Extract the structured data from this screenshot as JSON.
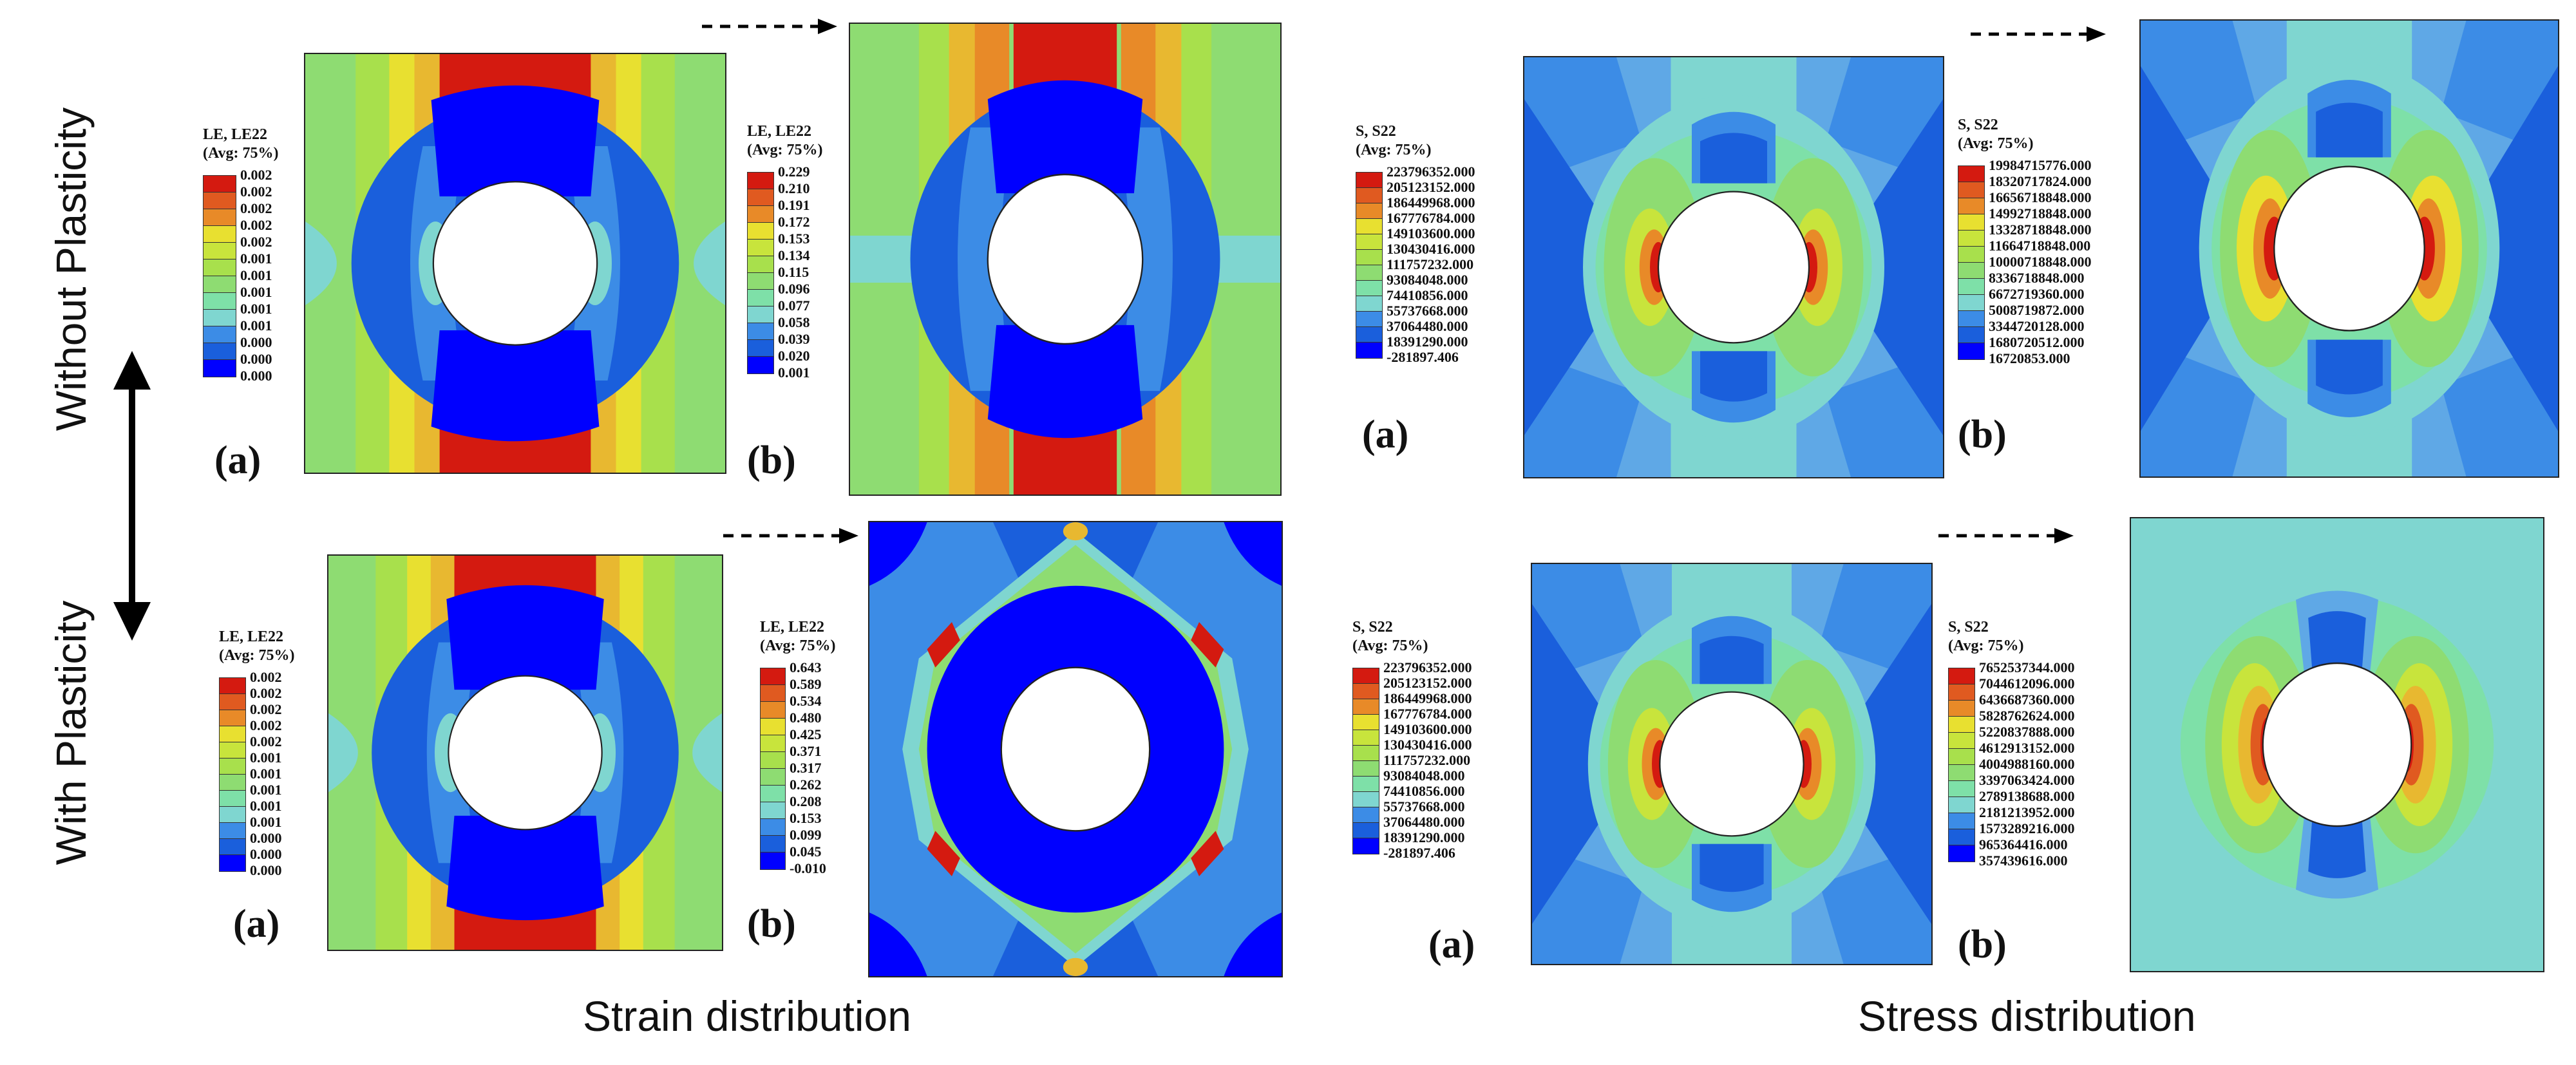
{
  "row_labels": {
    "top": "Without Plasticity",
    "bottom": "With Plasticity"
  },
  "section_labels": {
    "strain": "Strain distribution",
    "stress": "Stress distribution"
  },
  "panel_letters": {
    "a": "(a)",
    "b": "(b)"
  },
  "colors": [
    "#0000ff",
    "#1a5fdc",
    "#3c8ce6",
    "#5fa8e6",
    "#7fd6d0",
    "#7ee0a8",
    "#8edc72",
    "#a8e04c",
    "#c8e43c",
    "#e8e030",
    "#e8b830",
    "#e88a28",
    "#e05a20",
    "#d41a10"
  ],
  "legends": {
    "strain_top_a": {
      "title": [
        "LE, LE22",
        "(Avg: 75%)"
      ],
      "values": [
        "0.002",
        "0.002",
        "0.002",
        "0.002",
        "0.002",
        "0.001",
        "0.001",
        "0.001",
        "0.001",
        "0.001",
        "0.000",
        "0.000",
        "0.000"
      ]
    },
    "strain_top_b": {
      "title": [
        "LE, LE22",
        "(Avg: 75%)"
      ],
      "values": [
        "0.229",
        "0.210",
        "0.191",
        "0.172",
        "0.153",
        "0.134",
        "0.115",
        "0.096",
        "0.077",
        "0.058",
        "0.039",
        "0.020",
        "0.001"
      ]
    },
    "strain_bot_a": {
      "title": [
        "LE, LE22",
        "(Avg: 75%)"
      ],
      "values": [
        "0.002",
        "0.002",
        "0.002",
        "0.002",
        "0.002",
        "0.001",
        "0.001",
        "0.001",
        "0.001",
        "0.001",
        "0.000",
        "0.000",
        "0.000"
      ]
    },
    "strain_bot_b": {
      "title": [
        "LE, LE22",
        "(Avg: 75%)"
      ],
      "values": [
        "0.643",
        "0.589",
        "0.534",
        "0.480",
        "0.425",
        "0.371",
        "0.317",
        "0.262",
        "0.208",
        "0.153",
        "0.099",
        "0.045",
        "-0.010"
      ]
    },
    "stress_top_a": {
      "title": [
        "S, S22",
        "(Avg: 75%)"
      ],
      "values": [
        "223796352.000",
        "205123152.000",
        "186449968.000",
        "167776784.000",
        "149103600.000",
        "130430416.000",
        "111757232.000",
        "93084048.000",
        "74410856.000",
        "55737668.000",
        "37064480.000",
        "18391290.000",
        "-281897.406"
      ]
    },
    "stress_top_b": {
      "title": [
        "S, S22",
        "(Avg: 75%)"
      ],
      "values": [
        "19984715776.000",
        "18320717824.000",
        "16656718848.000",
        "14992718848.000",
        "13328718848.000",
        "11664718848.000",
        "10000718848.000",
        "8336718848.000",
        "6672719360.000",
        "5008719872.000",
        "3344720128.000",
        "1680720512.000",
        "16720853.000"
      ]
    },
    "stress_bot_a": {
      "title": [
        "S, S22",
        "(Avg: 75%)"
      ],
      "values": [
        "223796352.000",
        "205123152.000",
        "186449968.000",
        "167776784.000",
        "149103600.000",
        "130430416.000",
        "111757232.000",
        "93084048.000",
        "74410856.000",
        "55737668.000",
        "37064480.000",
        "18391290.000",
        "-281897.406"
      ]
    },
    "stress_bot_b": {
      "title": [
        "S, S22",
        "(Avg: 75%)"
      ],
      "values": [
        "7652537344.000",
        "7044612096.000",
        "6436687360.000",
        "5828762624.000",
        "5220837888.000",
        "4612913152.000",
        "4004988160.000",
        "3397063424.000",
        "2789138688.000",
        "2181213952.000",
        "1573289216.000",
        "965364416.000",
        "357439616.000"
      ]
    }
  }
}
